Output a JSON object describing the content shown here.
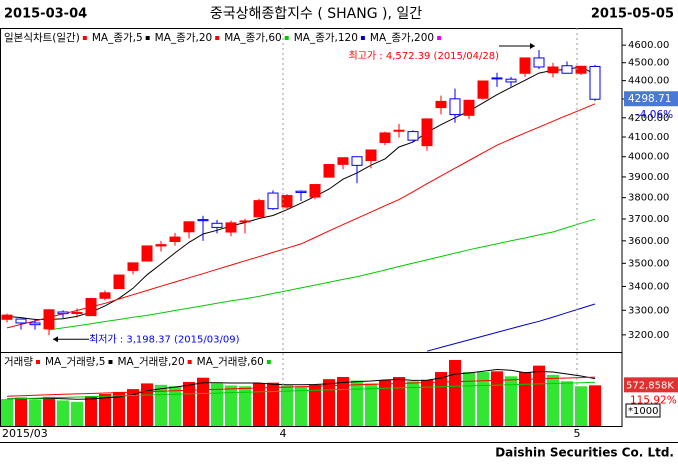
{
  "chart_data": {
    "type": "candlestick",
    "header_left": "2015-03-04",
    "title": "중국상해종합지수 ( SHANG ), 일간",
    "header_right": "2015-05-05",
    "panel_label": "일본식차트(일간)",
    "footer": "Daishin Securities Co. Ltd.",
    "categories": [
      "2015/03",
      null,
      null,
      null,
      null,
      null,
      null,
      null,
      null,
      null,
      null,
      null,
      null,
      null,
      null,
      null,
      null,
      null,
      null,
      null,
      "4",
      null,
      null,
      null,
      null,
      null,
      null,
      null,
      null,
      null,
      null,
      null,
      null,
      null,
      null,
      null,
      null,
      null,
      null,
      null,
      null,
      "5",
      null
    ],
    "open": [
      3263,
      3264,
      3248,
      3224,
      3293,
      3289,
      3278,
      3350,
      3391,
      3469,
      3510,
      3577,
      3597,
      3641,
      3697,
      3680,
      3640,
      3687,
      3710,
      3822,
      3756,
      3831,
      3803,
      3899,
      3962,
      4000,
      3981,
      4072,
      4135,
      4128,
      4056,
      4254,
      4301,
      4213,
      4304,
      4415,
      4408,
      4441,
      4527,
      4444,
      4483,
      4441,
      4479
    ],
    "high": [
      3286,
      3266,
      3265,
      3305,
      3300,
      3308,
      3352,
      3383,
      3450,
      3503,
      3578,
      3600,
      3636,
      3688,
      3715,
      3696,
      3693,
      3701,
      3795,
      3835,
      3817,
      3835,
      3866,
      3962,
      3996,
      4000,
      4035,
      4128,
      4168,
      4135,
      4195,
      4318,
      4356,
      4296,
      4400,
      4444,
      4421,
      4529,
      4572.39,
      4499,
      4507,
      4481,
      4488
    ],
    "low": [
      3250,
      3221,
      3221,
      3198.37,
      3268,
      3270,
      3276,
      3341,
      3391,
      3452,
      3508,
      3552,
      3578,
      3611,
      3600,
      3634,
      3621,
      3634,
      3710,
      3742,
      3742,
      3784,
      3792,
      3899,
      3938,
      3869,
      3942,
      4058,
      4097,
      4072,
      4031,
      4218,
      4174,
      4194,
      4296,
      4366,
      4368,
      4421,
      4464,
      4418,
      4442,
      4431,
      4290
    ],
    "close": [
      3280,
      3248,
      3241,
      3302,
      3286,
      3291,
      3349,
      3373,
      3449,
      3502,
      3577,
      3583,
      3617,
      3687,
      3692,
      3661,
      3682,
      3691,
      3786,
      3748,
      3810,
      3825,
      3863,
      3961,
      3995,
      3957,
      4034,
      4121,
      4135,
      4084,
      4194,
      4287,
      4217,
      4293,
      4398,
      4414,
      4393,
      4527,
      4476,
      4476,
      4441,
      4480,
      4298.71
    ],
    "up_color": "#ff0000",
    "down_color": "#0000ff",
    "change_label": "-4.06%",
    "series": [
      {
        "name": "MA_종가,5",
        "color": "#000000",
        "values": [
          3275,
          3270,
          3262,
          3262,
          3265,
          3275,
          3292,
          3318,
          3350,
          3392,
          3450,
          3497,
          3546,
          3593,
          3631,
          3648,
          3668,
          3683,
          3702,
          3716,
          3743,
          3774,
          3806,
          3841,
          3889,
          3920,
          3958,
          3989,
          4049,
          4074,
          4124,
          4164,
          4200,
          4236,
          4279,
          4323,
          4363,
          4402,
          4442,
          4458,
          4462,
          4478,
          4434
        ]
      },
      {
        "name": "MA_종가,20",
        "color": "#ff0000",
        "values": [
          3228,
          3242,
          3256,
          3271,
          3285,
          3299,
          3314,
          3329,
          3347,
          3365,
          3383,
          3401,
          3419,
          3437,
          3455,
          3474,
          3492,
          3511,
          3529,
          3548,
          3567,
          3586,
          3615,
          3645,
          3674,
          3703,
          3732,
          3762,
          3791,
          3828,
          3867,
          3905,
          3943,
          3981,
          4020,
          4058,
          4090,
          4121,
          4151,
          4182,
          4213,
          4243,
          4274
        ]
      },
      {
        "name": "MA_종가,60",
        "color": "#00cc00",
        "values": [
          null,
          null,
          null,
          3220,
          3228,
          3236,
          3245,
          3254,
          3262,
          3271,
          3279,
          3289,
          3299,
          3309,
          3319,
          3329,
          3339,
          3348,
          3358,
          3370,
          3382,
          3394,
          3406,
          3418,
          3430,
          3442,
          3456,
          3471,
          3486,
          3501,
          3515,
          3530,
          3545,
          3560,
          3573,
          3587,
          3600,
          3613,
          3627,
          3640,
          3660,
          3680,
          3699
        ]
      },
      {
        "name": "MA_종가,120",
        "color": "#0000cc",
        "values": [
          null,
          null,
          null,
          null,
          null,
          null,
          null,
          null,
          null,
          null,
          null,
          null,
          null,
          null,
          null,
          null,
          null,
          null,
          null,
          null,
          null,
          null,
          null,
          null,
          null,
          null,
          null,
          null,
          null,
          null,
          3135,
          3150,
          3165,
          3180,
          3195,
          3210,
          3225,
          3240,
          3255,
          3272,
          3290,
          3308,
          3326
        ]
      },
      {
        "name": "MA_종가,200",
        "color": "#ee00ee",
        "values": [
          null,
          null,
          null,
          null,
          null,
          null,
          null,
          null,
          null,
          null,
          null,
          null,
          null,
          null,
          null,
          null,
          null,
          null,
          null,
          null,
          null,
          null,
          null,
          null,
          null,
          null,
          null,
          null,
          null,
          null,
          null,
          null,
          null,
          null,
          null,
          null,
          null,
          null,
          null,
          null,
          null,
          null,
          null
        ]
      }
    ],
    "log_scale": true,
    "ylim": [
      3132,
      4700
    ],
    "yticks": [
      {
        "value": 3200,
        "label": "3200.00"
      },
      {
        "value": 3300,
        "label": "3300.00"
      },
      {
        "value": 3400,
        "label": "3400.00"
      },
      {
        "value": 3500,
        "label": "3500.00"
      },
      {
        "value": 3600,
        "label": "3600.00"
      },
      {
        "value": 3700,
        "label": "3700.00"
      },
      {
        "value": 3800,
        "label": "3800.00"
      },
      {
        "value": 3900,
        "label": "3900.00"
      },
      {
        "value": 4000,
        "label": "4000.00"
      },
      {
        "value": 4100,
        "label": "4100.00"
      },
      {
        "value": 4200,
        "label": "4200.00"
      },
      {
        "value": 4300,
        "label": "4300.00"
      },
      {
        "value": 4400,
        "label": "4400.00"
      },
      {
        "value": 4500,
        "label": "4500.00"
      },
      {
        "value": 4600,
        "label": "4600.00"
      }
    ],
    "annotations": [
      {
        "text": "최고가 : 4,572.39 (2015/04/28)",
        "color": "#ff0000"
      },
      {
        "text": "최저가 : 3,198.37 (2015/03/09)",
        "color": "#0000ff"
      }
    ],
    "volume": {
      "label": "거래량",
      "unit_label": "*1000",
      "ratio_label": "115.92%",
      "up_color": "#ff0000",
      "down_color": "#33e633",
      "ylim": [
        0,
        1000000
      ],
      "values": [
        380000,
        400000,
        370000,
        410000,
        360000,
        340000,
        420000,
        450000,
        480000,
        520000,
        600000,
        580000,
        560000,
        620000,
        680000,
        600000,
        570000,
        560000,
        600000,
        610000,
        570000,
        560000,
        580000,
        660000,
        690000,
        640000,
        600000,
        650000,
        690000,
        630000,
        650000,
        760000,
        930000,
        760000,
        760000,
        770000,
        700000,
        760000,
        850000,
        720000,
        630000,
        560000,
        572858
      ],
      "value_labels": [
        null,
        null,
        null,
        null,
        null,
        null,
        null,
        null,
        null,
        null,
        null,
        null,
        null,
        null,
        null,
        null,
        null,
        null,
        null,
        null,
        null,
        null,
        null,
        null,
        null,
        null,
        null,
        null,
        null,
        null,
        null,
        null,
        null,
        null,
        null,
        null,
        null,
        null,
        null,
        null,
        null,
        null,
        "572,858K"
      ],
      "series": [
        {
          "name": "MA_거래량,5",
          "color": "#000000",
          "values": [
            385000,
            388000,
            385000,
            390000,
            384000,
            376000,
            380000,
            396000,
            410000,
            442000,
            494000,
            526000,
            548000,
            576000,
            608000,
            608000,
            606000,
            606000,
            606000,
            588000,
            582000,
            580000,
            584000,
            596000,
            612000,
            626000,
            634000,
            648000,
            656000,
            642000,
            644000,
            676000,
            732000,
            746000,
            772000,
            796000,
            784000,
            750000,
            768000,
            760000,
            732000,
            704000,
            667000
          ]
        },
        {
          "name": "MA_거래량,20",
          "color": "#ff0000",
          "values": [
            420000,
            426000,
            433000,
            439000,
            446000,
            452000,
            458000,
            465000,
            471000,
            478000,
            484000,
            490000,
            497000,
            503000,
            510000,
            516000,
            522000,
            529000,
            535000,
            542000,
            548000,
            554000,
            561000,
            567000,
            574000,
            580000,
            586000,
            593000,
            599000,
            606000,
            612000,
            618000,
            625000,
            631000,
            638000,
            644000,
            650000,
            657000,
            663000,
            670000,
            676000,
            682000,
            689000
          ]
        },
        {
          "name": "MA_거래량,60",
          "color": "#00cc00",
          "values": [
            380000,
            386000,
            391000,
            397000,
            402000,
            408000,
            414000,
            419000,
            425000,
            430000,
            436000,
            442000,
            447000,
            453000,
            458000,
            464000,
            470000,
            475000,
            481000,
            486000,
            492000,
            498000,
            503000,
            509000,
            514000,
            520000,
            526000,
            531000,
            537000,
            542000,
            548000,
            554000,
            559000,
            565000,
            570000,
            576000,
            582000,
            587000,
            593000,
            598000,
            604000,
            610000,
            615000
          ]
        }
      ]
    }
  }
}
